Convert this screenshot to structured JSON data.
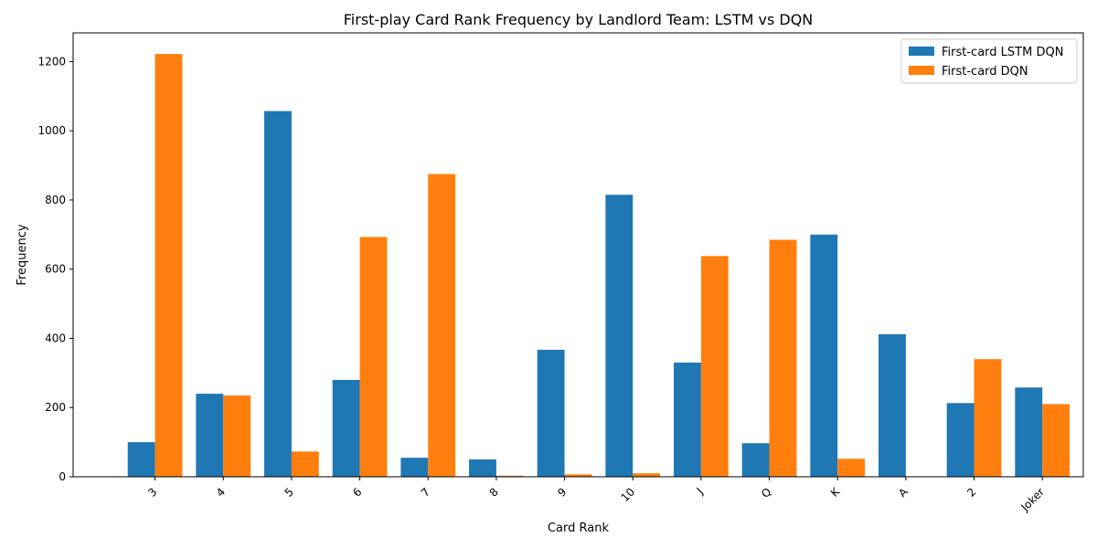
{
  "chart_data": {
    "type": "bar",
    "title": "First-play Card Rank Frequency by Landlord Team: LSTM vs DQN",
    "xlabel": "Card Rank",
    "ylabel": "Frequency",
    "categories": [
      "3",
      "4",
      "5",
      "6",
      "7",
      "8",
      "9",
      "10",
      "J",
      "Q",
      "K",
      "A",
      "2",
      "Joker"
    ],
    "series": [
      {
        "name": "First-card LSTM DQN",
        "color": "#1f77b4",
        "values": [
          100,
          240,
          1057,
          280,
          55,
          50,
          367,
          815,
          330,
          97,
          700,
          412,
          213,
          258
        ]
      },
      {
        "name": "First-card DQN",
        "color": "#ff7f0e",
        "values": [
          1222,
          235,
          73,
          693,
          875,
          3,
          7,
          10,
          638,
          685,
          52,
          0,
          340,
          210
        ]
      }
    ],
    "ylim": [
      0,
      1283
    ],
    "yticks": [
      0,
      200,
      400,
      600,
      800,
      1000,
      1200
    ],
    "grid": false,
    "legend_position": "top-right"
  }
}
